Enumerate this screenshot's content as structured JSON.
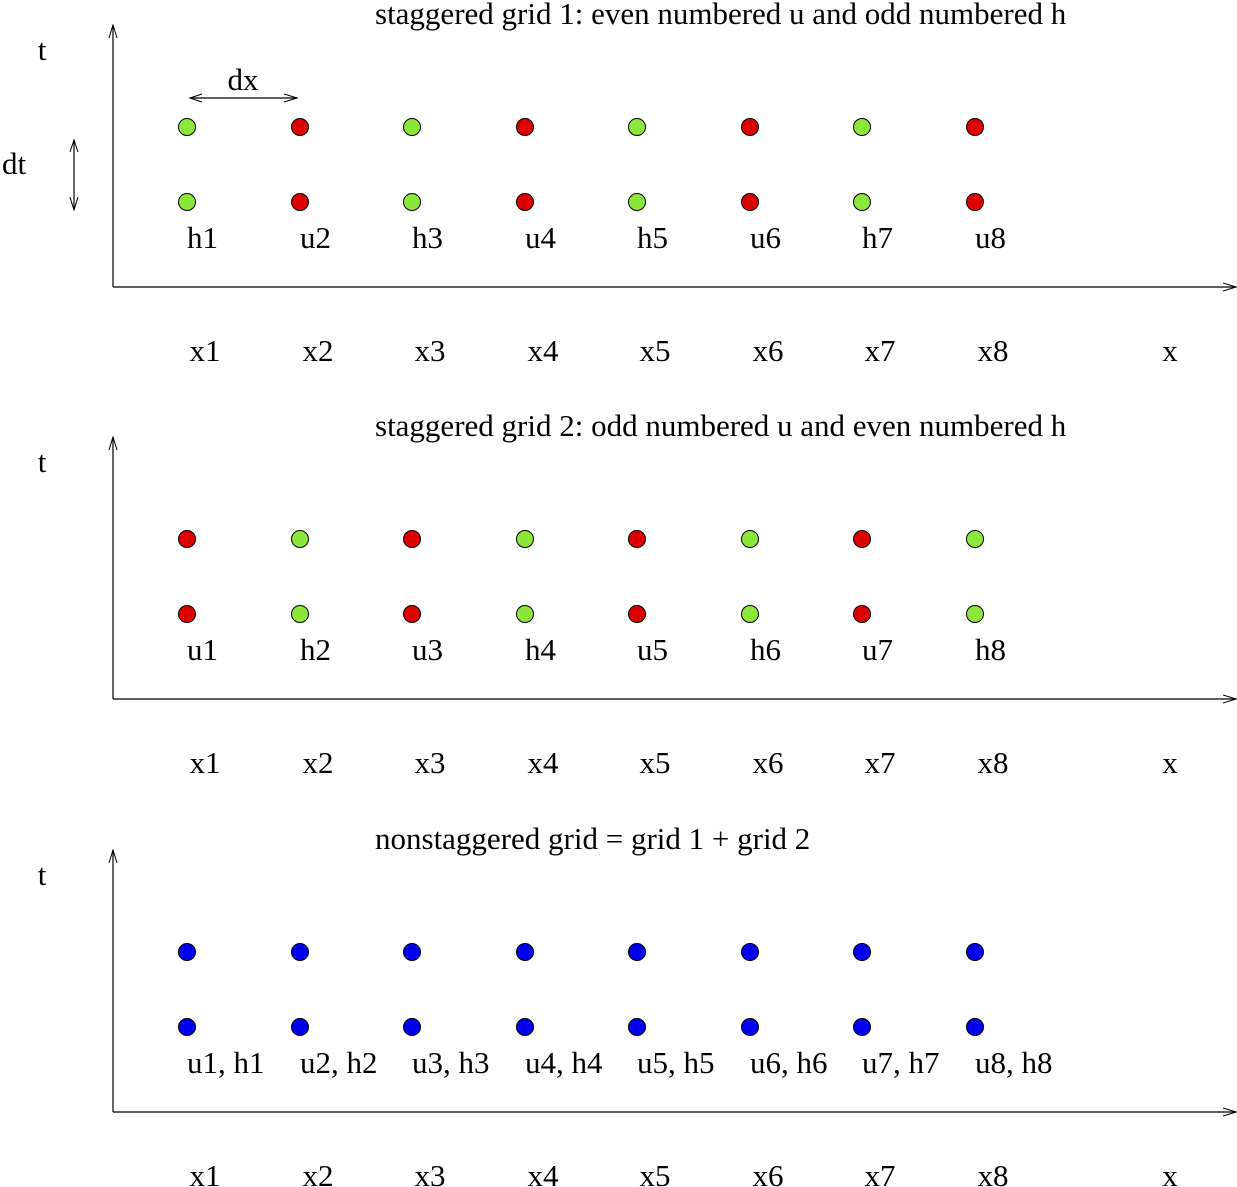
{
  "colors": {
    "green": "#8be83a",
    "red": "#dd0000",
    "blue": "#0000ee",
    "axis": "#000000"
  },
  "annotations": {
    "dx_label": "dx",
    "dt_label": "dt"
  },
  "panels": [
    {
      "title": "staggered grid 1: even numbered u and odd numbered h",
      "t_label": "t",
      "x_label": "x",
      "x_ticks": [
        "x1",
        "x2",
        "x3",
        "x4",
        "x5",
        "x6",
        "x7",
        "x8"
      ],
      "point_labels": [
        "h1",
        "u2",
        "h3",
        "u4",
        "h5",
        "u6",
        "h7",
        "u8"
      ],
      "point_colors": [
        "green",
        "red",
        "green",
        "red",
        "green",
        "red",
        "green",
        "red"
      ]
    },
    {
      "title": "staggered grid 2: odd numbered u and even numbered h",
      "t_label": "t",
      "x_label": "x",
      "x_ticks": [
        "x1",
        "x2",
        "x3",
        "x4",
        "x5",
        "x6",
        "x7",
        "x8"
      ],
      "point_labels": [
        "u1",
        "h2",
        "u3",
        "h4",
        "u5",
        "h6",
        "u7",
        "h8"
      ],
      "point_colors": [
        "red",
        "green",
        "red",
        "green",
        "red",
        "green",
        "red",
        "green"
      ]
    },
    {
      "title": "nonstaggered grid = grid 1 + grid 2",
      "t_label": "t",
      "x_label": "x",
      "x_ticks": [
        "x1",
        "x2",
        "x3",
        "x4",
        "x5",
        "x6",
        "x7",
        "x8"
      ],
      "point_labels": [
        "u1, h1",
        "u2, h2",
        "u3, h3",
        "u4, h4",
        "u5, h5",
        "u6, h6",
        "u7, h7",
        "u8, h8"
      ],
      "point_colors": [
        "blue",
        "blue",
        "blue",
        "blue",
        "blue",
        "blue",
        "blue",
        "blue"
      ]
    }
  ]
}
